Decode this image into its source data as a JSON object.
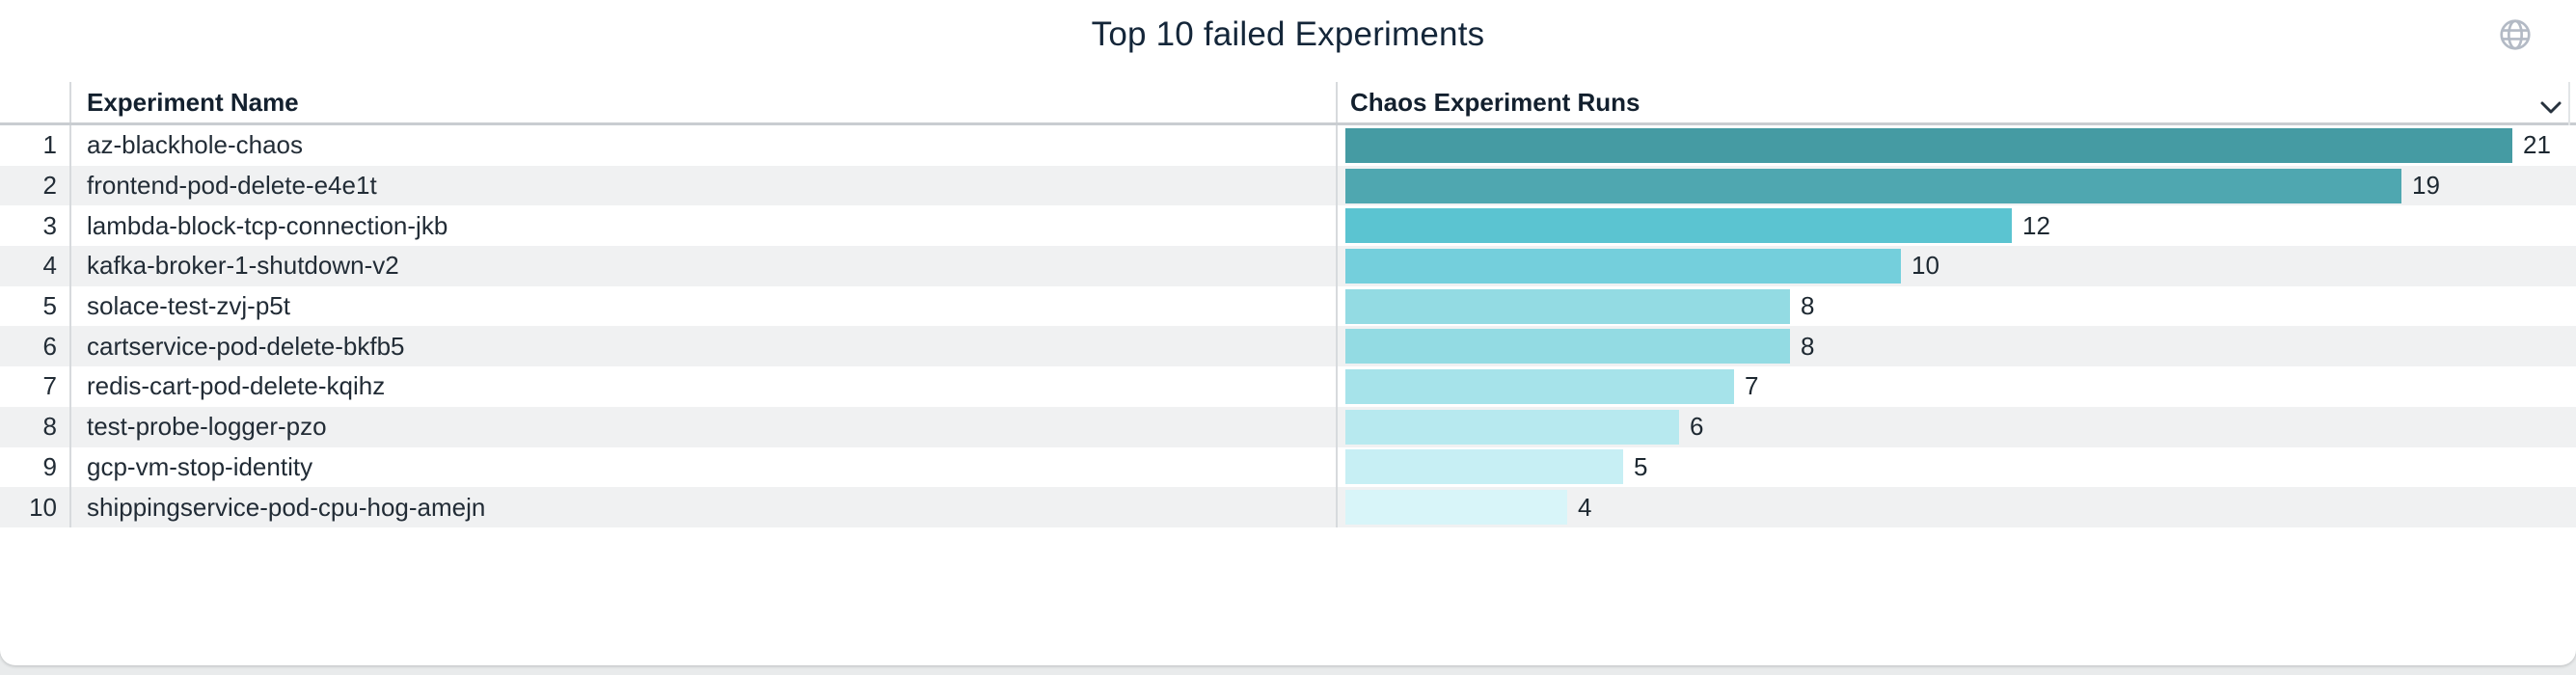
{
  "widget": {
    "title": "Top 10 failed Experiments"
  },
  "table": {
    "columns": {
      "name": "Experiment Name",
      "runs": "Chaos Experiment Runs"
    }
  },
  "icons": {
    "globe": "globe-icon",
    "sort": "chevron-down-icon"
  },
  "chart_data": {
    "type": "bar",
    "orientation": "horizontal",
    "title": "Top 10 failed Experiments",
    "value_label": "Chaos Experiment Runs",
    "categories": [
      "az-blackhole-chaos",
      "frontend-pod-delete-e4e1t",
      "lambda-block-tcp-connection-jkb",
      "kafka-broker-1-shutdown-v2",
      "solace-test-zvj-p5t",
      "cartservice-pod-delete-bkfb5",
      "redis-cart-pod-delete-kqihz",
      "test-probe-logger-pzo",
      "gcp-vm-stop-identity",
      "shippingservice-pod-cpu-hog-amejn"
    ],
    "row_numbers": [
      1,
      2,
      3,
      4,
      5,
      6,
      7,
      8,
      9,
      10
    ],
    "values": [
      21,
      19,
      12,
      10,
      8,
      8,
      7,
      6,
      5,
      4
    ],
    "xlim": [
      0,
      21
    ],
    "grid": false,
    "legend": false,
    "bar_colors": [
      "#459BA3",
      "#4FA7B0",
      "#5BC4D1",
      "#74CFDC",
      "#93DBE3",
      "#93DBE3",
      "#A6E3EA",
      "#B7E9EF",
      "#C7EFF4",
      "#D8F5F9"
    ]
  },
  "colors": {
    "row_alt": "#F0F1F2",
    "text": "#222C36",
    "header_text": "#13202E",
    "divider": "#D7DADD",
    "header_border": "#C9CDD1",
    "globe": "#B3BAC5",
    "chevron": "#27323E"
  }
}
